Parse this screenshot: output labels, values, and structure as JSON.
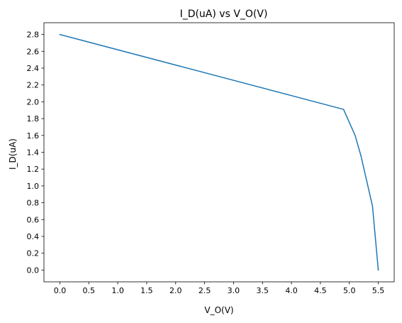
{
  "chart_data": {
    "type": "line",
    "title": "I_D(uA) vs V_O(V)",
    "xlabel": "V_O(V)",
    "ylabel": "I_D(uA)",
    "xlim": [
      -0.275,
      5.775
    ],
    "ylim": [
      -0.14,
      2.94
    ],
    "xticks": [
      0.0,
      0.5,
      1.0,
      1.5,
      2.0,
      2.5,
      3.0,
      3.5,
      4.0,
      4.5,
      5.0,
      5.5
    ],
    "xtick_labels": [
      "0.0",
      "0.5",
      "1.0",
      "1.5",
      "2.0",
      "2.5",
      "3.0",
      "3.5",
      "4.0",
      "4.5",
      "5.0",
      "5.5"
    ],
    "yticks": [
      0.0,
      0.2,
      0.4,
      0.6,
      0.8,
      1.0,
      1.2,
      1.4,
      1.6,
      1.8,
      2.0,
      2.2,
      2.4,
      2.6,
      2.8
    ],
    "ytick_labels": [
      "0.0",
      "0.2",
      "0.4",
      "0.6",
      "0.8",
      "1.0",
      "1.2",
      "1.4",
      "1.6",
      "1.8",
      "2.0",
      "2.2",
      "2.4",
      "2.6",
      "2.8"
    ],
    "grid": false,
    "series": [
      {
        "color": "#1f77b4",
        "x": [
          0.0,
          4.9,
          5.1,
          5.2,
          5.3,
          5.4,
          5.5
        ],
        "y": [
          2.8,
          1.91,
          1.6,
          1.36,
          1.06,
          0.76,
          0.0
        ]
      }
    ]
  }
}
